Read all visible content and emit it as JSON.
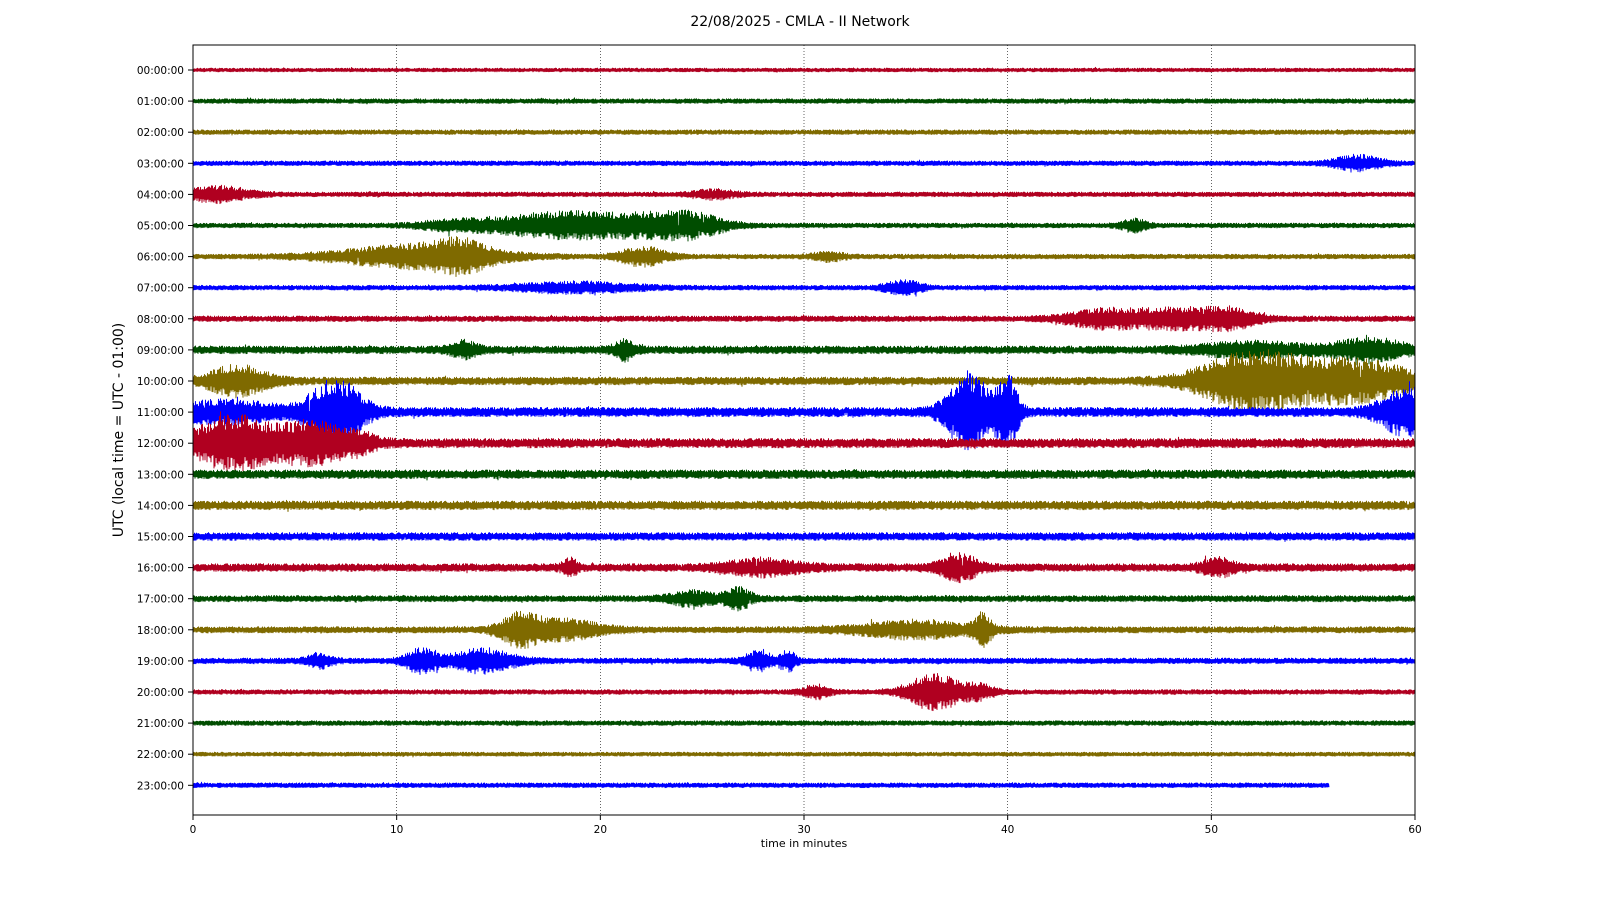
{
  "chart_data": {
    "type": "line",
    "title": "22/08/2025 - CMLA - II Network",
    "xlabel": "time in minutes",
    "ylabel": "UTC (local time = UTC - 01:00)",
    "xlim": [
      0,
      60
    ],
    "xticks": [
      0,
      10,
      20,
      30,
      40,
      50,
      60
    ],
    "vertical_gridlines": [
      10,
      20,
      30,
      40,
      50
    ],
    "grid_style": "dotted",
    "color_cycle": [
      "#b00020",
      "#004d00",
      "#7f6a00",
      "#0000ff"
    ],
    "series": [
      {
        "label": "00:00:00",
        "color": "#b00020",
        "end_minute": 60,
        "baseline_amplitude": 0.12,
        "events": []
      },
      {
        "label": "01:00:00",
        "color": "#004d00",
        "end_minute": 60,
        "baseline_amplitude": 0.15,
        "events": []
      },
      {
        "label": "02:00:00",
        "color": "#7f6a00",
        "end_minute": 60,
        "baseline_amplitude": 0.15,
        "events": []
      },
      {
        "label": "03:00:00",
        "color": "#0000ff",
        "end_minute": 60,
        "baseline_amplitude": 0.15,
        "events": [
          {
            "t": 57.2,
            "w": 0.9,
            "a": 0.45
          }
        ]
      },
      {
        "label": "04:00:00",
        "color": "#b00020",
        "end_minute": 60,
        "baseline_amplitude": 0.15,
        "events": [
          {
            "t": 1.2,
            "w": 1.3,
            "a": 0.45
          },
          {
            "t": 25.6,
            "w": 0.8,
            "a": 0.25
          }
        ]
      },
      {
        "label": "05:00:00",
        "color": "#004d00",
        "end_minute": 60,
        "baseline_amplitude": 0.15,
        "events": [
          {
            "t": 18.0,
            "w": 2.2,
            "a": 0.8
          },
          {
            "t": 22.5,
            "w": 1.8,
            "a": 0.6
          },
          {
            "t": 24.6,
            "w": 1.2,
            "a": 0.5
          },
          {
            "t": 13.0,
            "w": 1.5,
            "a": 0.3
          },
          {
            "t": 46.2,
            "w": 0.5,
            "a": 0.35
          }
        ]
      },
      {
        "label": "06:00:00",
        "color": "#7f6a00",
        "end_minute": 60,
        "baseline_amplitude": 0.15,
        "events": [
          {
            "t": 11.0,
            "w": 3.0,
            "a": 0.7
          },
          {
            "t": 13.2,
            "w": 1.0,
            "a": 0.6
          },
          {
            "t": 22.1,
            "w": 0.9,
            "a": 0.55
          },
          {
            "t": 31.2,
            "w": 0.6,
            "a": 0.25
          }
        ]
      },
      {
        "label": "07:00:00",
        "color": "#0000ff",
        "end_minute": 60,
        "baseline_amplitude": 0.15,
        "events": [
          {
            "t": 18.8,
            "w": 2.3,
            "a": 0.3
          },
          {
            "t": 34.9,
            "w": 0.7,
            "a": 0.4
          }
        ]
      },
      {
        "label": "08:00:00",
        "color": "#b00020",
        "end_minute": 60,
        "baseline_amplitude": 0.18,
        "events": [
          {
            "t": 44.6,
            "w": 1.4,
            "a": 0.5
          },
          {
            "t": 48.4,
            "w": 1.8,
            "a": 0.6
          },
          {
            "t": 51.0,
            "w": 1.0,
            "a": 0.45
          }
        ]
      },
      {
        "label": "09:00:00",
        "color": "#004d00",
        "end_minute": 60,
        "baseline_amplitude": 0.25,
        "events": [
          {
            "t": 13.3,
            "w": 0.5,
            "a": 0.45
          },
          {
            "t": 21.2,
            "w": 0.4,
            "a": 0.55
          },
          {
            "t": 57.8,
            "w": 1.4,
            "a": 0.6
          },
          {
            "t": 52.0,
            "w": 2.0,
            "a": 0.4
          }
        ]
      },
      {
        "label": "10:00:00",
        "color": "#7f6a00",
        "end_minute": 60,
        "baseline_amplitude": 0.25,
        "events": [
          {
            "t": 2.2,
            "w": 1.1,
            "a": 0.9
          },
          {
            "t": 52.0,
            "w": 2.0,
            "a": 1.7
          },
          {
            "t": 57.0,
            "w": 2.3,
            "a": 1.2
          }
        ]
      },
      {
        "label": "11:00:00",
        "color": "#0000ff",
        "end_minute": 60,
        "baseline_amplitude": 0.3,
        "events": [
          {
            "t": 7.0,
            "w": 1.0,
            "a": 2.0
          },
          {
            "t": 1.5,
            "w": 2.0,
            "a": 0.6
          },
          {
            "t": 38.1,
            "w": 0.8,
            "a": 2.4
          },
          {
            "t": 40.0,
            "w": 0.4,
            "a": 2.2
          },
          {
            "t": 59.6,
            "w": 1.0,
            "a": 1.4
          }
        ]
      },
      {
        "label": "12:00:00",
        "color": "#b00020",
        "end_minute": 60,
        "baseline_amplitude": 0.3,
        "events": [
          {
            "t": 2.0,
            "w": 1.5,
            "a": 1.6
          },
          {
            "t": 5.8,
            "w": 1.2,
            "a": 1.2
          },
          {
            "t": 8.0,
            "w": 0.8,
            "a": 0.5
          }
        ]
      },
      {
        "label": "13:00:00",
        "color": "#004d00",
        "end_minute": 60,
        "baseline_amplitude": 0.28,
        "events": []
      },
      {
        "label": "14:00:00",
        "color": "#7f6a00",
        "end_minute": 60,
        "baseline_amplitude": 0.28,
        "events": []
      },
      {
        "label": "15:00:00",
        "color": "#0000ff",
        "end_minute": 60,
        "baseline_amplitude": 0.25,
        "events": []
      },
      {
        "label": "16:00:00",
        "color": "#b00020",
        "end_minute": 60,
        "baseline_amplitude": 0.25,
        "events": [
          {
            "t": 18.5,
            "w": 0.3,
            "a": 0.45
          },
          {
            "t": 28.0,
            "w": 1.4,
            "a": 0.45
          },
          {
            "t": 37.6,
            "w": 0.7,
            "a": 0.8
          },
          {
            "t": 50.3,
            "w": 0.6,
            "a": 0.5
          }
        ]
      },
      {
        "label": "17:00:00",
        "color": "#004d00",
        "end_minute": 60,
        "baseline_amplitude": 0.2,
        "events": [
          {
            "t": 24.5,
            "w": 0.9,
            "a": 0.4
          },
          {
            "t": 26.8,
            "w": 0.5,
            "a": 0.6
          }
        ]
      },
      {
        "label": "18:00:00",
        "color": "#7f6a00",
        "end_minute": 60,
        "baseline_amplitude": 0.2,
        "events": [
          {
            "t": 16.0,
            "w": 0.7,
            "a": 0.8
          },
          {
            "t": 18.0,
            "w": 1.5,
            "a": 0.6
          },
          {
            "t": 35.5,
            "w": 2.2,
            "a": 0.5
          },
          {
            "t": 38.8,
            "w": 0.3,
            "a": 0.9
          }
        ]
      },
      {
        "label": "19:00:00",
        "color": "#0000ff",
        "end_minute": 60,
        "baseline_amplitude": 0.18,
        "events": [
          {
            "t": 6.2,
            "w": 0.5,
            "a": 0.4
          },
          {
            "t": 11.2,
            "w": 0.6,
            "a": 0.7
          },
          {
            "t": 14.2,
            "w": 1.2,
            "a": 0.7
          },
          {
            "t": 27.8,
            "w": 0.5,
            "a": 0.55
          },
          {
            "t": 29.2,
            "w": 0.3,
            "a": 0.6
          }
        ]
      },
      {
        "label": "20:00:00",
        "color": "#b00020",
        "end_minute": 60,
        "baseline_amplitude": 0.15,
        "events": [
          {
            "t": 30.6,
            "w": 0.5,
            "a": 0.4
          },
          {
            "t": 36.4,
            "w": 1.0,
            "a": 1.1
          },
          {
            "t": 38.6,
            "w": 0.6,
            "a": 0.4
          }
        ]
      },
      {
        "label": "21:00:00",
        "color": "#004d00",
        "end_minute": 60,
        "baseline_amplitude": 0.15,
        "events": []
      },
      {
        "label": "22:00:00",
        "color": "#7f6a00",
        "end_minute": 60,
        "baseline_amplitude": 0.13,
        "events": []
      },
      {
        "label": "23:00:00",
        "color": "#0000ff",
        "end_minute": 55.8,
        "baseline_amplitude": 0.15,
        "events": []
      }
    ]
  }
}
